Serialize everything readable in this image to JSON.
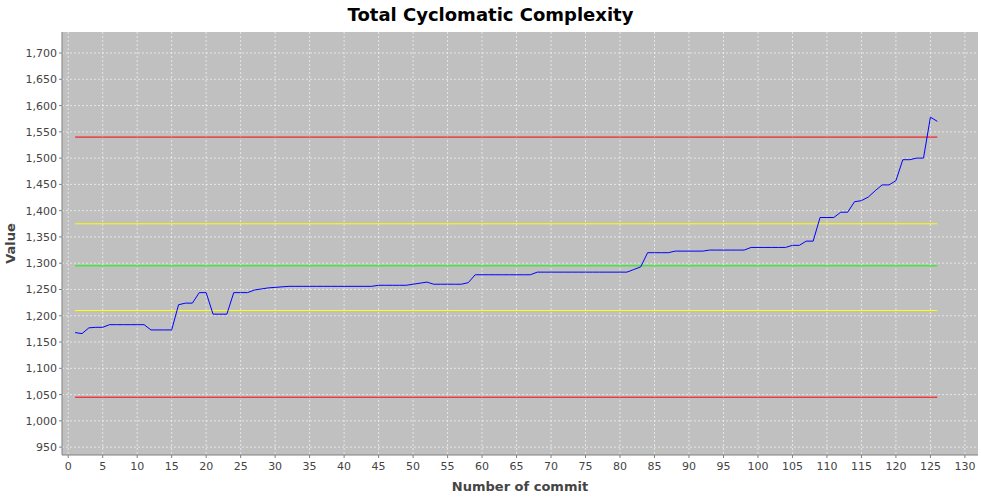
{
  "chart_data": {
    "type": "line",
    "title": "Total Cyclomatic Complexity",
    "x_label": "Number of commit",
    "y_label": "Value",
    "x": [
      1,
      2,
      3,
      4,
      5,
      6,
      7,
      8,
      9,
      10,
      11,
      12,
      13,
      14,
      15,
      16,
      17,
      18,
      19,
      20,
      21,
      22,
      23,
      24,
      25,
      26,
      27,
      28,
      29,
      30,
      31,
      32,
      33,
      34,
      35,
      36,
      37,
      38,
      39,
      40,
      41,
      42,
      43,
      44,
      45,
      46,
      47,
      48,
      49,
      50,
      51,
      52,
      53,
      54,
      55,
      56,
      57,
      58,
      59,
      60,
      61,
      62,
      63,
      64,
      65,
      66,
      67,
      68,
      69,
      70,
      71,
      72,
      73,
      74,
      75,
      76,
      77,
      78,
      79,
      80,
      81,
      82,
      83,
      84,
      85,
      86,
      87,
      88,
      89,
      90,
      91,
      92,
      93,
      94,
      95,
      96,
      97,
      98,
      99,
      100,
      101,
      102,
      103,
      104,
      105,
      106,
      107,
      108,
      109,
      110,
      111,
      112,
      113,
      114,
      115,
      116,
      117,
      118,
      119,
      120,
      121,
      122,
      123,
      124,
      125,
      126
    ],
    "values": [
      1168,
      1166,
      1177,
      1178,
      1178,
      1183,
      1183,
      1183,
      1183,
      1183,
      1183,
      1173,
      1173,
      1173,
      1173,
      1221,
      1224,
      1224,
      1244,
      1244,
      1203,
      1203,
      1203,
      1244,
      1244,
      1244,
      1249,
      1251,
      1253,
      1254,
      1255,
      1256,
      1256,
      1256,
      1256,
      1256,
      1256,
      1256,
      1256,
      1256,
      1256,
      1256,
      1256,
      1256,
      1258,
      1258,
      1258,
      1258,
      1258,
      1260,
      1262,
      1264,
      1260,
      1260,
      1260,
      1260,
      1260,
      1263,
      1278,
      1278,
      1278,
      1278,
      1278,
      1278,
      1278,
      1278,
      1278,
      1283,
      1283,
      1283,
      1283,
      1283,
      1283,
      1283,
      1283,
      1283,
      1283,
      1283,
      1283,
      1283,
      1283,
      1288,
      1293,
      1320,
      1320,
      1320,
      1320,
      1323,
      1323,
      1323,
      1323,
      1323,
      1325,
      1325,
      1325,
      1325,
      1325,
      1325,
      1330,
      1330,
      1330,
      1330,
      1330,
      1330,
      1334,
      1334,
      1342,
      1342,
      1387,
      1387,
      1387,
      1397,
      1397,
      1417,
      1419,
      1426,
      1438,
      1449,
      1449,
      1457,
      1497,
      1497,
      1500,
      1500,
      1578,
      1570
    ],
    "color": "#0000ff",
    "reference_lines": [
      {
        "value": 1540,
        "color": "#ff0000"
      },
      {
        "value": 1375,
        "color": "#ffff00"
      },
      {
        "value": 1295,
        "color": "#00ff00"
      },
      {
        "value": 1210,
        "color": "#ffff00"
      },
      {
        "value": 1045,
        "color": "#ff0000"
      }
    ],
    "xlim": [
      -0.9,
      131.9
    ],
    "xticks": [
      0,
      5,
      10,
      15,
      20,
      25,
      30,
      35,
      40,
      45,
      50,
      55,
      60,
      65,
      70,
      75,
      80,
      85,
      90,
      95,
      100,
      105,
      110,
      115,
      120,
      125,
      130
    ],
    "ylim": [
      935,
      1740
    ],
    "yticks": [
      {
        "value": 950,
        "label": "950"
      },
      {
        "value": 1000,
        "label": "1,000"
      },
      {
        "value": 1050,
        "label": "1,050"
      },
      {
        "value": 1100,
        "label": "1,100"
      },
      {
        "value": 1150,
        "label": "1,150"
      },
      {
        "value": 1200,
        "label": "1,200"
      },
      {
        "value": 1250,
        "label": "1,250"
      },
      {
        "value": 1300,
        "label": "1,300"
      },
      {
        "value": 1350,
        "label": "1,350"
      },
      {
        "value": 1400,
        "label": "1,400"
      },
      {
        "value": 1450,
        "label": "1,450"
      },
      {
        "value": 1500,
        "label": "1,500"
      },
      {
        "value": 1550,
        "label": "1,550"
      },
      {
        "value": 1600,
        "label": "1,600"
      },
      {
        "value": 1650,
        "label": "1,650"
      },
      {
        "value": 1700,
        "label": "1,700"
      }
    ],
    "grid": true
  }
}
